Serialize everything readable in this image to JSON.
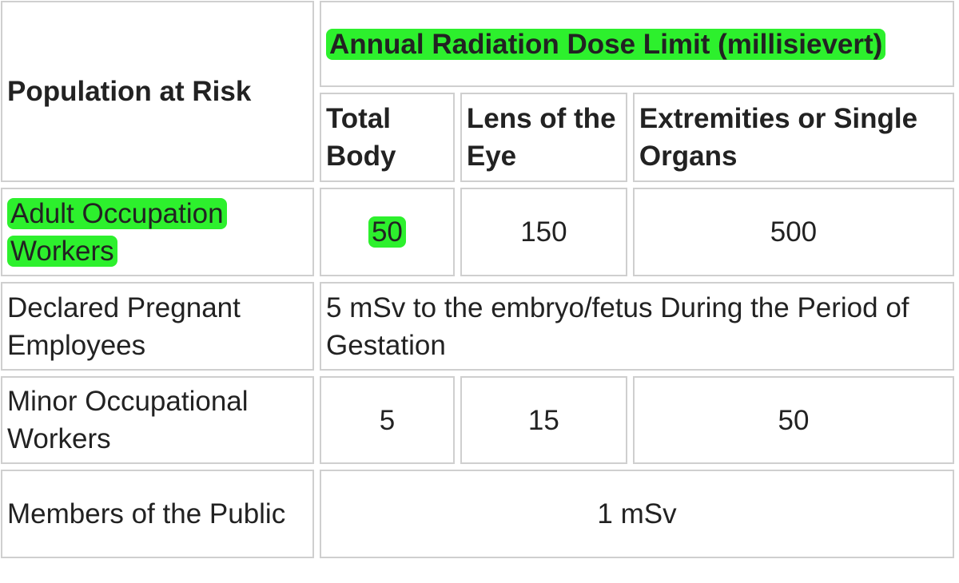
{
  "table": {
    "header": {
      "population": "Population at Risk",
      "group": "Annual Radiation Dose Limit (millisievert)",
      "columns": [
        "Total Body",
        "Lens of the Eye",
        "Extremities or Single Organs"
      ]
    },
    "rows": [
      {
        "label": "Adult Occupation Workers",
        "cells": [
          "50",
          "150",
          "500"
        ]
      },
      {
        "label": "Declared Pregnant Employees",
        "cells": [
          "5 mSv to the embryo/fetus During the Period of Gestation"
        ]
      },
      {
        "label": "Minor Occupational Workers",
        "cells": [
          "5",
          "15",
          "50"
        ]
      },
      {
        "label": "Members of the Public",
        "cells": [
          "1 mSv"
        ]
      }
    ]
  }
}
